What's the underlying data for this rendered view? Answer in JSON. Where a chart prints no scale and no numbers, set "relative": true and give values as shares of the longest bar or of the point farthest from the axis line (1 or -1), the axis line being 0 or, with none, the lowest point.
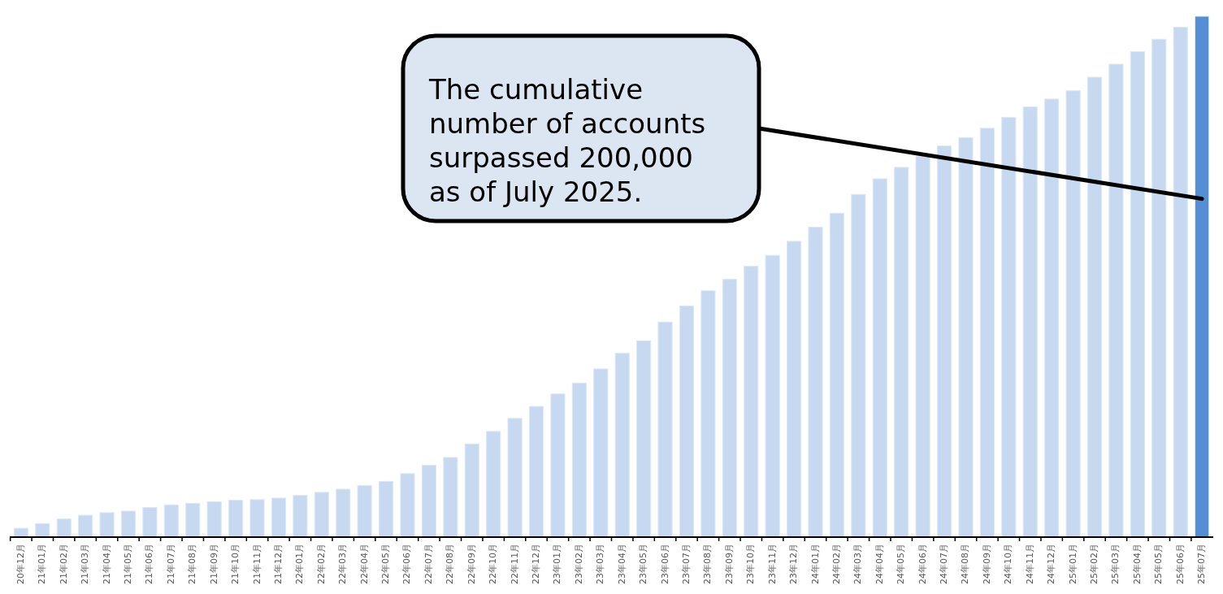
{
  "chart_data": {
    "type": "bar",
    "relative": true,
    "categories": [
      "20年12月",
      "21年01月",
      "21年02月",
      "21年03月",
      "21年04月",
      "21年05月",
      "21年06月",
      "21年07月",
      "21年08月",
      "21年09月",
      "21年10月",
      "21年11月",
      "21年12月",
      "22年01月",
      "22年02月",
      "22年03月",
      "22年04月",
      "22年05月",
      "22年06月",
      "22年07月",
      "22年08月",
      "22年09月",
      "22年10月",
      "22年11月",
      "22年12月",
      "23年01月",
      "23年02月",
      "23年03月",
      "23年04月",
      "23年05月",
      "23年06月",
      "23年07月",
      "23年08月",
      "23年09月",
      "23年10月",
      "23年11月",
      "23年12月",
      "24年01月",
      "24年02月",
      "24年03月",
      "24年04月",
      "24年05月",
      "24年06月",
      "24年07月",
      "24年08月",
      "24年09月",
      "24年10月",
      "24年11月",
      "24年12月",
      "25年01月",
      "25年02月",
      "25年03月",
      "25年04月",
      "25年05月",
      "25年06月",
      "25年07月"
    ],
    "values": [
      0.017,
      0.026,
      0.035,
      0.042,
      0.047,
      0.05,
      0.057,
      0.062,
      0.065,
      0.068,
      0.071,
      0.072,
      0.075,
      0.08,
      0.086,
      0.092,
      0.099,
      0.107,
      0.122,
      0.138,
      0.153,
      0.179,
      0.203,
      0.228,
      0.251,
      0.275,
      0.296,
      0.323,
      0.353,
      0.377,
      0.413,
      0.444,
      0.473,
      0.495,
      0.52,
      0.541,
      0.568,
      0.595,
      0.622,
      0.658,
      0.688,
      0.71,
      0.731,
      0.751,
      0.767,
      0.785,
      0.806,
      0.826,
      0.841,
      0.857,
      0.883,
      0.908,
      0.932,
      0.956,
      0.979,
      1
    ],
    "colors": [
      "#c6d9f1",
      "#c6d9f1",
      "#c6d9f1",
      "#c6d9f1",
      "#c6d9f1",
      "#c6d9f1",
      "#c6d9f1",
      "#c6d9f1",
      "#c6d9f1",
      "#c6d9f1",
      "#c6d9f1",
      "#c6d9f1",
      "#c6d9f1",
      "#c6d9f1",
      "#c6d9f1",
      "#c6d9f1",
      "#c6d9f1",
      "#c6d9f1",
      "#c6d9f1",
      "#c6d9f1",
      "#c6d9f1",
      "#c6d9f1",
      "#c6d9f1",
      "#c6d9f1",
      "#c6d9f1",
      "#c6d9f1",
      "#c6d9f1",
      "#c6d9f1",
      "#c6d9f1",
      "#c6d9f1",
      "#c6d9f1",
      "#c6d9f1",
      "#c6d9f1",
      "#c6d9f1",
      "#c6d9f1",
      "#c6d9f1",
      "#c6d9f1",
      "#c6d9f1",
      "#c6d9f1",
      "#c6d9f1",
      "#c6d9f1",
      "#c6d9f1",
      "#c6d9f1",
      "#c6d9f1",
      "#c6d9f1",
      "#c6d9f1",
      "#c6d9f1",
      "#c6d9f1",
      "#c6d9f1",
      "#c6d9f1",
      "#c6d9f1",
      "#c6d9f1",
      "#c6d9f1",
      "#c6d9f1",
      "#c6d9f1",
      "#558ed5"
    ],
    "annotations": [
      "The cumulative number of accounts surpassed 200,000 as of July 2025."
    ]
  }
}
